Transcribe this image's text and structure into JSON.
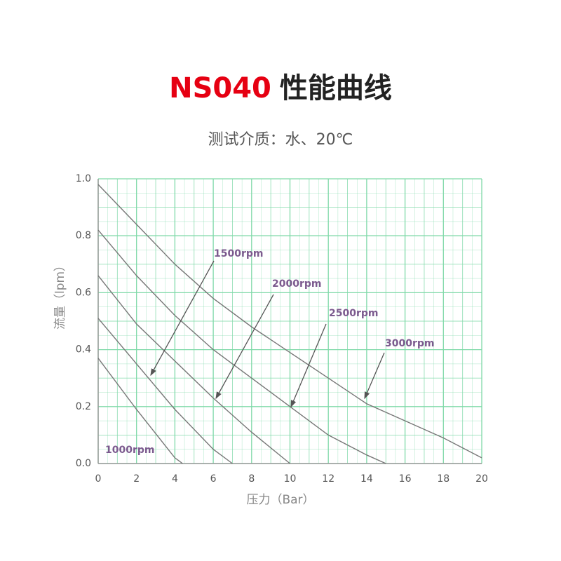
{
  "chart_data": {
    "type": "line",
    "title": {
      "model": "NS040",
      "text": "性能曲线"
    },
    "subtitle": "测试介质：水、20℃",
    "x_label": "压力（Bar）",
    "y_label": "流量（lpm）",
    "xlim": [
      0,
      20
    ],
    "xticks": [
      0,
      2,
      4,
      6,
      8,
      10,
      12,
      14,
      16,
      18,
      20
    ],
    "ylim": [
      0,
      1
    ],
    "yticks": [
      {
        "value": 0,
        "label": "0.0"
      },
      {
        "value": 0.2,
        "label": "0.2"
      },
      {
        "value": 0.4,
        "label": "0.4"
      },
      {
        "value": 0.6,
        "label": "0.6"
      },
      {
        "value": 0.8,
        "label": "0.8"
      },
      {
        "value": 1,
        "label": "1.0"
      }
    ],
    "grid": true,
    "grid_color": "#7fd9a8",
    "line_color": "#777777",
    "label_color": "#7b5a8e",
    "series": [
      {
        "name": "1000rpm",
        "x": [
          0,
          2,
          4,
          4.4
        ],
        "values": [
          0.37,
          0.19,
          0.02,
          0
        ]
      },
      {
        "name": "1500rpm",
        "x": [
          0,
          2,
          4,
          6,
          7
        ],
        "values": [
          0.51,
          0.35,
          0.19,
          0.05,
          0
        ]
      },
      {
        "name": "2000rpm",
        "x": [
          0,
          2,
          4,
          6,
          8,
          10
        ],
        "values": [
          0.66,
          0.49,
          0.36,
          0.23,
          0.11,
          0
        ]
      },
      {
        "name": "2500rpm",
        "x": [
          0,
          2,
          4,
          6,
          8,
          10,
          12,
          14,
          15
        ],
        "values": [
          0.82,
          0.66,
          0.52,
          0.4,
          0.3,
          0.2,
          0.1,
          0.03,
          0
        ]
      },
      {
        "name": "3000rpm",
        "x": [
          0,
          2,
          4,
          6,
          8,
          10,
          12,
          14,
          16,
          18,
          20
        ],
        "values": [
          0.98,
          0.84,
          0.7,
          0.58,
          0.48,
          0.39,
          0.3,
          0.21,
          0.15,
          0.09,
          0.02
        ]
      }
    ]
  }
}
